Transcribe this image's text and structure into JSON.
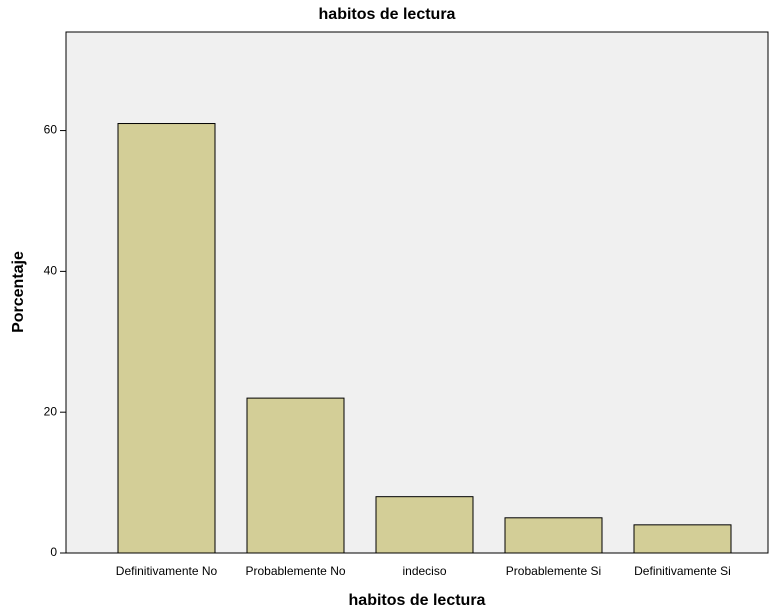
{
  "chart_data": {
    "type": "bar",
    "title": "habitos de lectura",
    "x_label": "habitos de lectura",
    "y_label": "Porcentaje",
    "categories": [
      "Definitivamente No",
      "Probablemente No",
      "indeciso",
      "Probablemente Si",
      "Definitivamente Si"
    ],
    "values": [
      61,
      22,
      8,
      5,
      4
    ],
    "color": "#d3ce97",
    "ylim": [
      0,
      74
    ],
    "yticks": [
      0,
      20,
      40,
      60
    ],
    "grid": false
  }
}
